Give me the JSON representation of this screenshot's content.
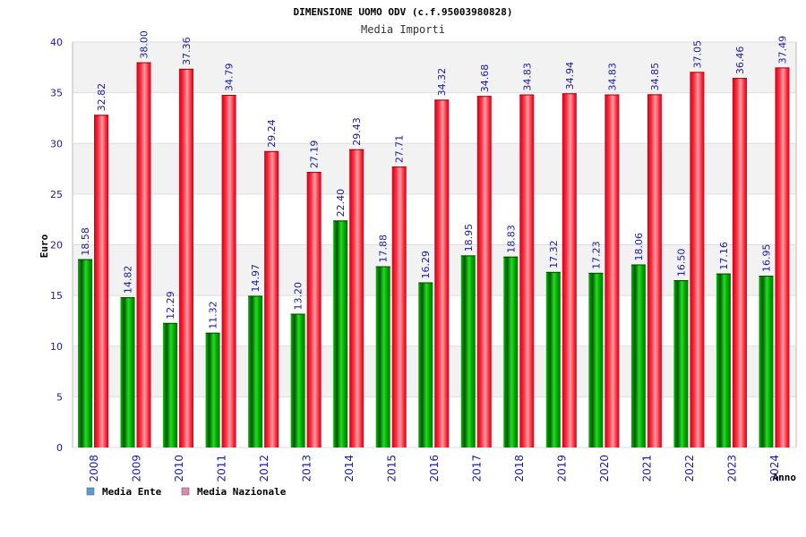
{
  "chart_data": {
    "type": "bar",
    "title": "DIMENSIONE UOMO ODV (c.f.95003980828)",
    "subtitle": "Media Importi",
    "xlabel": "Anno",
    "ylabel": "Euro",
    "ylim": [
      0,
      40
    ],
    "yticks": [
      0,
      5,
      10,
      15,
      20,
      25,
      30,
      35,
      40
    ],
    "grid": true,
    "legend_position": "bottom-left",
    "categories": [
      "2008",
      "2009",
      "2010",
      "2011",
      "2012",
      "2013",
      "2014",
      "2015",
      "2016",
      "2017",
      "2018",
      "2019",
      "2020",
      "2021",
      "2022",
      "2023",
      "2024"
    ],
    "series": [
      {
        "name": "Media Ente",
        "color": "#00aa00",
        "legend_color": "#5b9bd5",
        "values": [
          18.58,
          14.82,
          12.29,
          11.32,
          14.97,
          13.2,
          22.4,
          17.88,
          16.29,
          18.95,
          18.83,
          17.32,
          17.23,
          18.06,
          16.5,
          17.16,
          16.95
        ],
        "labels": [
          "18.58",
          "14.82",
          "12.29",
          "11.32",
          "14.97",
          "13.20",
          "22.40",
          "17.88",
          "16.29",
          "18.95",
          "18.83",
          "17.32",
          "17.23",
          "18.06",
          "16.50",
          "17.16",
          "16.95"
        ]
      },
      {
        "name": "Media Nazionale",
        "color": "#e8192c",
        "legend_color": "#d98cb3",
        "values": [
          32.82,
          38.0,
          37.36,
          34.79,
          29.24,
          27.19,
          29.43,
          27.71,
          34.32,
          34.68,
          34.83,
          34.94,
          34.83,
          34.85,
          37.05,
          36.46,
          37.49
        ],
        "labels": [
          "32.82",
          "38.00",
          "37.36",
          "34.79",
          "29.24",
          "27.19",
          "29.43",
          "27.71",
          "34.32",
          "34.68",
          "34.83",
          "34.94",
          "34.83",
          "34.85",
          "37.05",
          "36.46",
          "37.49"
        ]
      }
    ]
  }
}
